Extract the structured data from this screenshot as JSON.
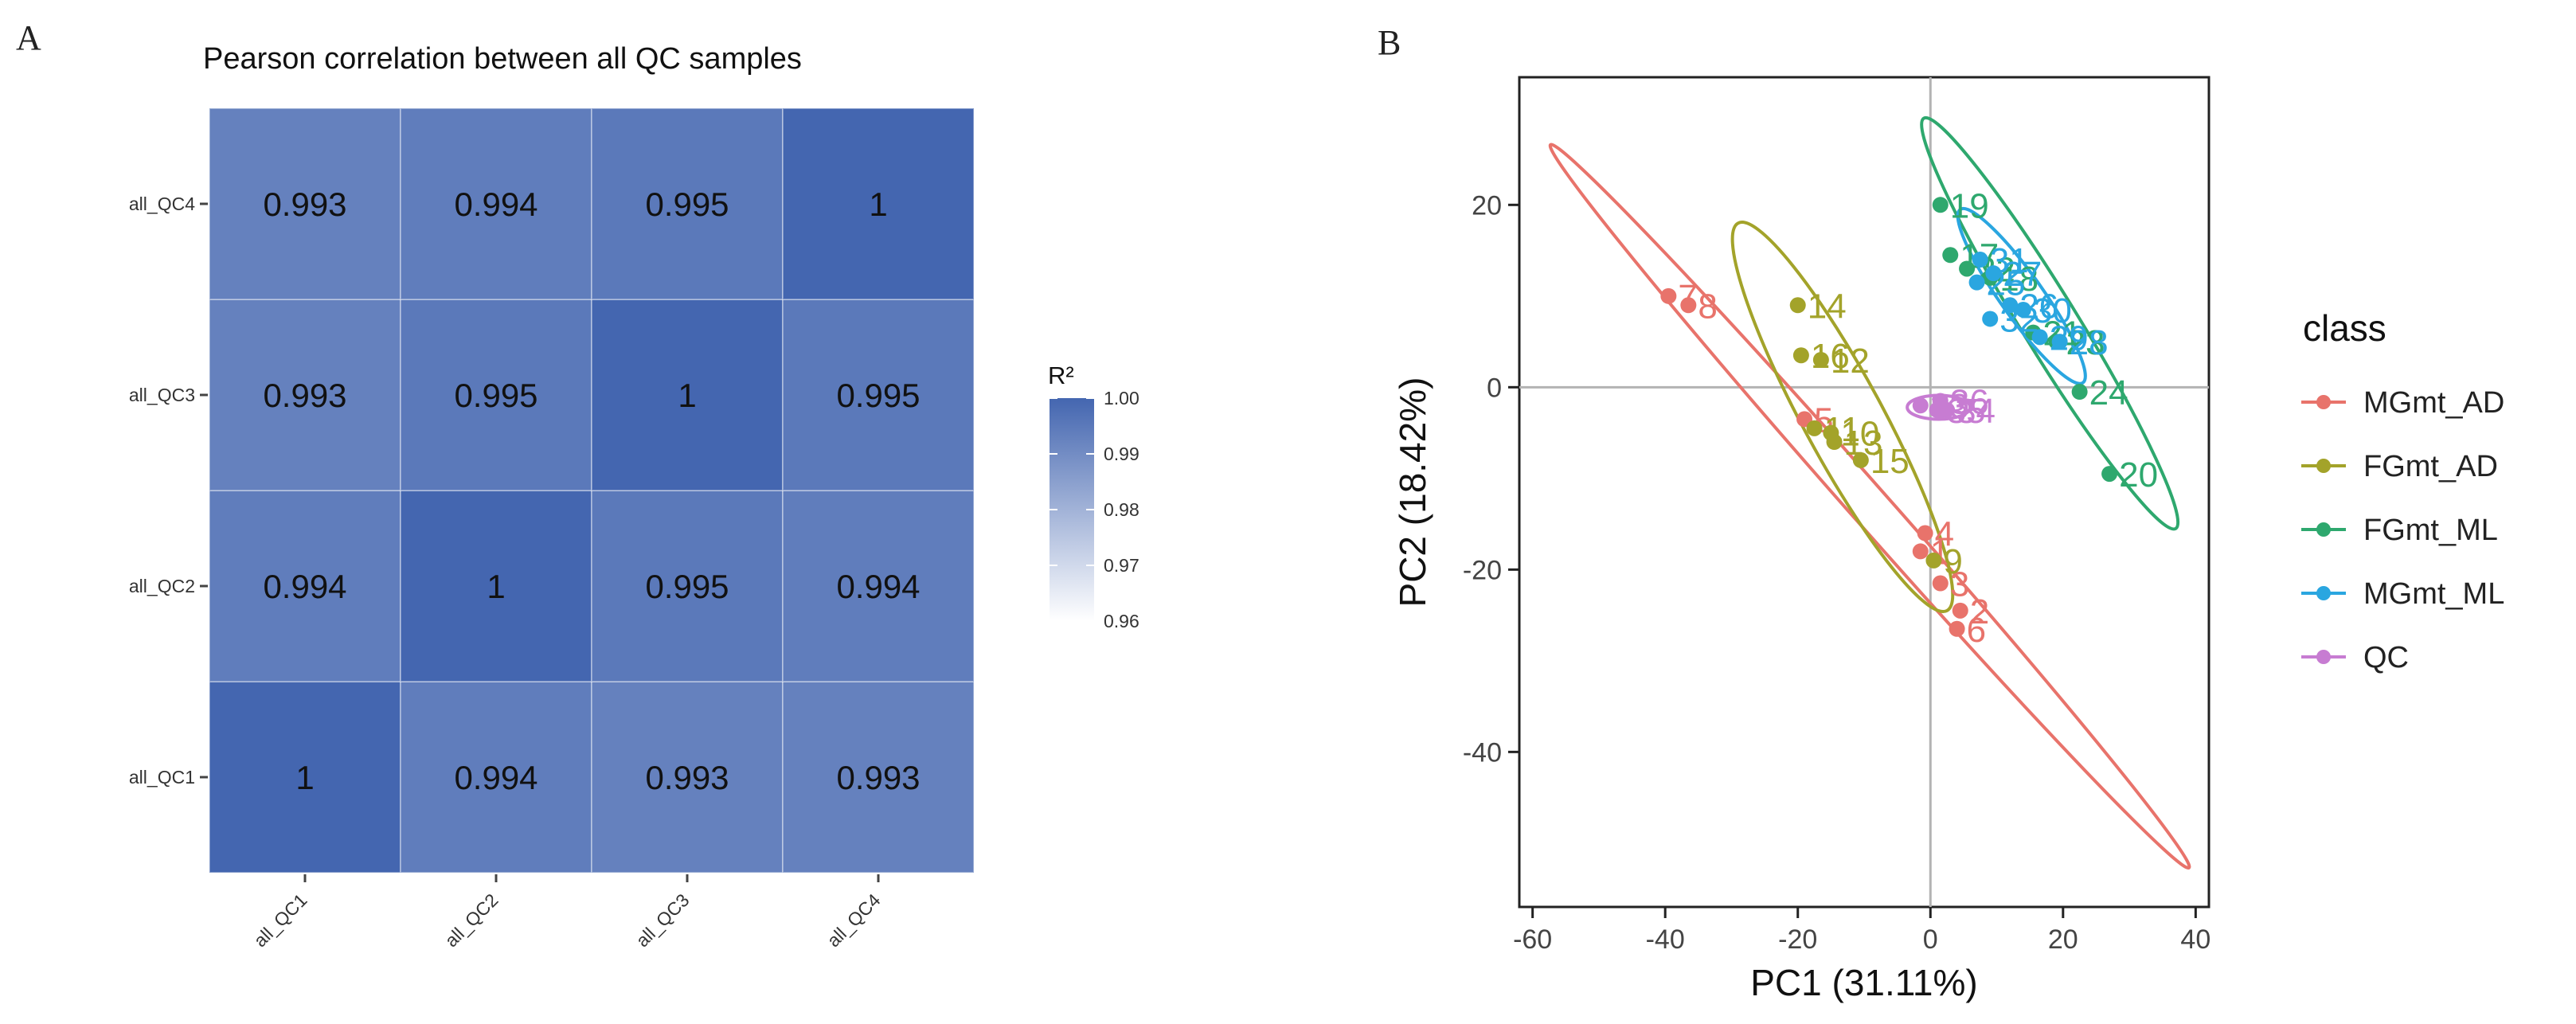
{
  "panels": {
    "a_label": "A",
    "b_label": "B"
  },
  "chart_data": [
    {
      "type": "heatmap",
      "title": "Pearson correlation between all QC samples",
      "x_categories": [
        "all_QC1",
        "all_QC2",
        "all_QC3",
        "all_QC4"
      ],
      "y_categories": [
        "all_QC1",
        "all_QC2",
        "all_QC3",
        "all_QC4"
      ],
      "cells": [
        {
          "x": "all_QC1",
          "y": "all_QC1",
          "value": 1,
          "label": "1"
        },
        {
          "x": "all_QC2",
          "y": "all_QC1",
          "value": 0.994,
          "label": "0.994"
        },
        {
          "x": "all_QC3",
          "y": "all_QC1",
          "value": 0.993,
          "label": "0.993"
        },
        {
          "x": "all_QC4",
          "y": "all_QC1",
          "value": 0.993,
          "label": "0.993"
        },
        {
          "x": "all_QC1",
          "y": "all_QC2",
          "value": 0.994,
          "label": "0.994"
        },
        {
          "x": "all_QC2",
          "y": "all_QC2",
          "value": 1,
          "label": "1"
        },
        {
          "x": "all_QC3",
          "y": "all_QC2",
          "value": 0.995,
          "label": "0.995"
        },
        {
          "x": "all_QC4",
          "y": "all_QC2",
          "value": 0.994,
          "label": "0.994"
        },
        {
          "x": "all_QC1",
          "y": "all_QC3",
          "value": 0.993,
          "label": "0.993"
        },
        {
          "x": "all_QC2",
          "y": "all_QC3",
          "value": 0.995,
          "label": "0.995"
        },
        {
          "x": "all_QC3",
          "y": "all_QC3",
          "value": 1,
          "label": "1"
        },
        {
          "x": "all_QC4",
          "y": "all_QC3",
          "value": 0.995,
          "label": "0.995"
        },
        {
          "x": "all_QC1",
          "y": "all_QC4",
          "value": 0.993,
          "label": "0.993"
        },
        {
          "x": "all_QC2",
          "y": "all_QC4",
          "value": 0.994,
          "label": "0.994"
        },
        {
          "x": "all_QC3",
          "y": "all_QC4",
          "value": 0.995,
          "label": "0.995"
        },
        {
          "x": "all_QC4",
          "y": "all_QC4",
          "value": 1,
          "label": "1"
        }
      ],
      "colorbar": {
        "title": "R²",
        "range": [
          0.96,
          1.0
        ],
        "ticks": [
          0.96,
          0.97,
          0.98,
          0.99,
          1.0
        ],
        "tick_labels": [
          "0.96",
          "0.97",
          "0.98",
          "0.99",
          "1.00"
        ],
        "low_color": "#ffffff",
        "high_color": "#4466b0"
      },
      "legend_position": "right"
    },
    {
      "type": "scatter",
      "xlabel": "PC1 (31.11%)",
      "ylabel": "PC2 (18.42%)",
      "xlim": [
        -62,
        42
      ],
      "ylim": [
        -57,
        34
      ],
      "x_ticks": [
        -60,
        -40,
        -20,
        0,
        20,
        40
      ],
      "y_ticks": [
        -40,
        -20,
        0,
        20
      ],
      "reference_lines": {
        "x": 0,
        "y": 0
      },
      "legend_title": "class",
      "legend_position": "right",
      "series": [
        {
          "name": "MGmt_AD",
          "color": "#e8736b",
          "points": [
            {
              "x": -39.5,
              "y": 10.0,
              "label": "7"
            },
            {
              "x": -36.5,
              "y": 9.0,
              "label": "8"
            },
            {
              "x": -19.0,
              "y": -3.5,
              "label": "5"
            },
            {
              "x": -0.8,
              "y": -16.0,
              "label": "4"
            },
            {
              "x": -1.5,
              "y": -18.0,
              "label": "1"
            },
            {
              "x": 1.5,
              "y": -21.5,
              "label": "3"
            },
            {
              "x": 4.5,
              "y": -24.5,
              "label": "2"
            },
            {
              "x": 4.0,
              "y": -26.5,
              "label": "6"
            }
          ],
          "ellipse": {
            "points": [
              [
                -57.3,
                26.6
              ],
              [
                39.0,
                -52.7
              ]
            ],
            "half_width": 2.9
          }
        },
        {
          "name": "FGmt_AD",
          "color": "#a3a32a",
          "points": [
            {
              "x": -20.0,
              "y": 9.0,
              "label": "14"
            },
            {
              "x": -19.5,
              "y": 3.5,
              "label": "16"
            },
            {
              "x": -16.5,
              "y": 3.0,
              "label": "12"
            },
            {
              "x": -17.5,
              "y": -4.5,
              "label": "11"
            },
            {
              "x": -15.0,
              "y": -5.0,
              "label": "10"
            },
            {
              "x": -14.5,
              "y": -6.0,
              "label": "13"
            },
            {
              "x": -10.5,
              "y": -8.0,
              "label": "15"
            },
            {
              "x": 0.5,
              "y": -19.0,
              "label": "9"
            }
          ],
          "ellipse": {
            "points": [
              [
                -29.0,
                18.0
              ],
              [
                2.5,
                -24.5
              ]
            ],
            "half_width": 6.0
          }
        },
        {
          "name": "FGmt_ML",
          "color": "#2ea86e",
          "points": [
            {
              "x": 1.5,
              "y": 20.0,
              "label": "19"
            },
            {
              "x": 3.0,
              "y": 14.5,
              "label": "17"
            },
            {
              "x": 5.5,
              "y": 13.0,
              "label": "22"
            },
            {
              "x": 9.0,
              "y": 12.0,
              "label": "18"
            },
            {
              "x": 15.5,
              "y": 6.0,
              "label": "21"
            },
            {
              "x": 19.0,
              "y": 5.0,
              "label": "23"
            },
            {
              "x": 22.5,
              "y": -0.5,
              "label": "24"
            },
            {
              "x": 27.0,
              "y": -9.5,
              "label": "20"
            }
          ],
          "ellipse": {
            "points": [
              [
                -1.0,
                29.5
              ],
              [
                37.0,
                -15.5
              ]
            ],
            "half_width": 4.2
          }
        },
        {
          "name": "MGmt_ML",
          "color": "#2aa6e0",
          "points": [
            {
              "x": 7.5,
              "y": 14.0,
              "label": "31"
            },
            {
              "x": 9.5,
              "y": 12.5,
              "label": "27"
            },
            {
              "x": 7.0,
              "y": 11.5,
              "label": "25"
            },
            {
              "x": 12.0,
              "y": 9.0,
              "label": "26"
            },
            {
              "x": 14.0,
              "y": 8.5,
              "label": "30"
            },
            {
              "x": 9.0,
              "y": 7.5,
              "label": "32"
            },
            {
              "x": 16.5,
              "y": 5.5,
              "label": "29"
            },
            {
              "x": 19.5,
              "y": 5.0,
              "label": "28"
            }
          ],
          "ellipse": {
            "points": [
              [
                4.5,
                19.5
              ],
              [
                23.0,
                0.5
              ]
            ],
            "half_width": 3.2
          }
        },
        {
          "name": "QC",
          "color": "#c77cd2",
          "points": [
            {
              "x": -1.5,
              "y": -2.0,
              "label": "33"
            },
            {
              "x": 1.5,
              "y": -1.5,
              "label": "36"
            },
            {
              "x": 1.0,
              "y": -2.5,
              "label": "35"
            },
            {
              "x": 2.5,
              "y": -2.5,
              "label": "34"
            }
          ],
          "ellipse": {
            "points": [
              [
                -3.5,
                -2.2
              ],
              [
                6.0,
                -2.2
              ]
            ],
            "half_width": 1.8
          }
        }
      ]
    }
  ]
}
